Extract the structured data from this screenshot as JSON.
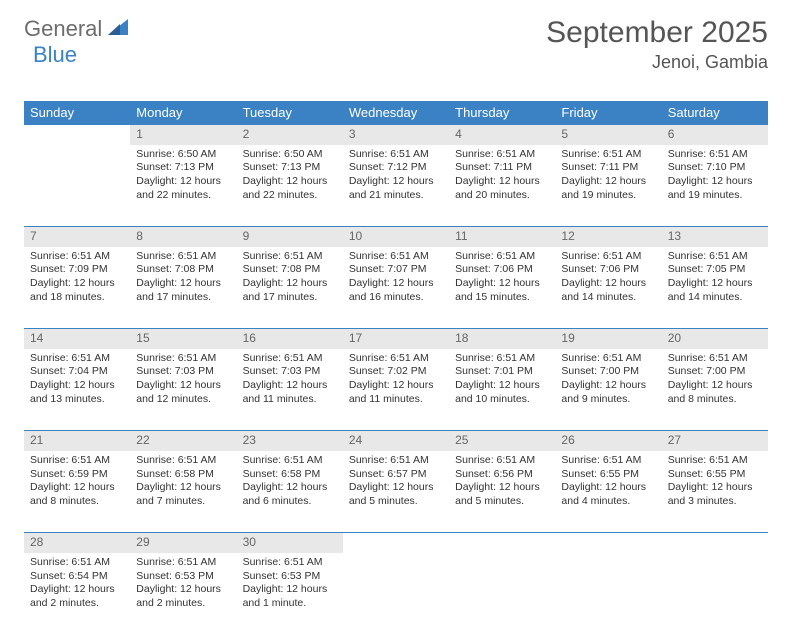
{
  "logo": {
    "text1": "General",
    "text2": "Blue"
  },
  "title": "September 2025",
  "location": "Jenoi, Gambia",
  "colors": {
    "header_bg": "#3b82c4",
    "header_text": "#ffffff",
    "daynum_bg": "#e8e8e8",
    "daynum_text": "#666666",
    "border": "#3b82c4",
    "body_text": "#333333",
    "logo_gray": "#6d6d6d",
    "logo_blue": "#3b82c4"
  },
  "weekdays": [
    "Sunday",
    "Monday",
    "Tuesday",
    "Wednesday",
    "Thursday",
    "Friday",
    "Saturday"
  ],
  "weeks": [
    [
      null,
      {
        "n": "1",
        "sr": "Sunrise: 6:50 AM",
        "ss": "Sunset: 7:13 PM",
        "dl": "Daylight: 12 hours and 22 minutes."
      },
      {
        "n": "2",
        "sr": "Sunrise: 6:50 AM",
        "ss": "Sunset: 7:13 PM",
        "dl": "Daylight: 12 hours and 22 minutes."
      },
      {
        "n": "3",
        "sr": "Sunrise: 6:51 AM",
        "ss": "Sunset: 7:12 PM",
        "dl": "Daylight: 12 hours and 21 minutes."
      },
      {
        "n": "4",
        "sr": "Sunrise: 6:51 AM",
        "ss": "Sunset: 7:11 PM",
        "dl": "Daylight: 12 hours and 20 minutes."
      },
      {
        "n": "5",
        "sr": "Sunrise: 6:51 AM",
        "ss": "Sunset: 7:11 PM",
        "dl": "Daylight: 12 hours and 19 minutes."
      },
      {
        "n": "6",
        "sr": "Sunrise: 6:51 AM",
        "ss": "Sunset: 7:10 PM",
        "dl": "Daylight: 12 hours and 19 minutes."
      }
    ],
    [
      {
        "n": "7",
        "sr": "Sunrise: 6:51 AM",
        "ss": "Sunset: 7:09 PM",
        "dl": "Daylight: 12 hours and 18 minutes."
      },
      {
        "n": "8",
        "sr": "Sunrise: 6:51 AM",
        "ss": "Sunset: 7:08 PM",
        "dl": "Daylight: 12 hours and 17 minutes."
      },
      {
        "n": "9",
        "sr": "Sunrise: 6:51 AM",
        "ss": "Sunset: 7:08 PM",
        "dl": "Daylight: 12 hours and 17 minutes."
      },
      {
        "n": "10",
        "sr": "Sunrise: 6:51 AM",
        "ss": "Sunset: 7:07 PM",
        "dl": "Daylight: 12 hours and 16 minutes."
      },
      {
        "n": "11",
        "sr": "Sunrise: 6:51 AM",
        "ss": "Sunset: 7:06 PM",
        "dl": "Daylight: 12 hours and 15 minutes."
      },
      {
        "n": "12",
        "sr": "Sunrise: 6:51 AM",
        "ss": "Sunset: 7:06 PM",
        "dl": "Daylight: 12 hours and 14 minutes."
      },
      {
        "n": "13",
        "sr": "Sunrise: 6:51 AM",
        "ss": "Sunset: 7:05 PM",
        "dl": "Daylight: 12 hours and 14 minutes."
      }
    ],
    [
      {
        "n": "14",
        "sr": "Sunrise: 6:51 AM",
        "ss": "Sunset: 7:04 PM",
        "dl": "Daylight: 12 hours and 13 minutes."
      },
      {
        "n": "15",
        "sr": "Sunrise: 6:51 AM",
        "ss": "Sunset: 7:03 PM",
        "dl": "Daylight: 12 hours and 12 minutes."
      },
      {
        "n": "16",
        "sr": "Sunrise: 6:51 AM",
        "ss": "Sunset: 7:03 PM",
        "dl": "Daylight: 12 hours and 11 minutes."
      },
      {
        "n": "17",
        "sr": "Sunrise: 6:51 AM",
        "ss": "Sunset: 7:02 PM",
        "dl": "Daylight: 12 hours and 11 minutes."
      },
      {
        "n": "18",
        "sr": "Sunrise: 6:51 AM",
        "ss": "Sunset: 7:01 PM",
        "dl": "Daylight: 12 hours and 10 minutes."
      },
      {
        "n": "19",
        "sr": "Sunrise: 6:51 AM",
        "ss": "Sunset: 7:00 PM",
        "dl": "Daylight: 12 hours and 9 minutes."
      },
      {
        "n": "20",
        "sr": "Sunrise: 6:51 AM",
        "ss": "Sunset: 7:00 PM",
        "dl": "Daylight: 12 hours and 8 minutes."
      }
    ],
    [
      {
        "n": "21",
        "sr": "Sunrise: 6:51 AM",
        "ss": "Sunset: 6:59 PM",
        "dl": "Daylight: 12 hours and 8 minutes."
      },
      {
        "n": "22",
        "sr": "Sunrise: 6:51 AM",
        "ss": "Sunset: 6:58 PM",
        "dl": "Daylight: 12 hours and 7 minutes."
      },
      {
        "n": "23",
        "sr": "Sunrise: 6:51 AM",
        "ss": "Sunset: 6:58 PM",
        "dl": "Daylight: 12 hours and 6 minutes."
      },
      {
        "n": "24",
        "sr": "Sunrise: 6:51 AM",
        "ss": "Sunset: 6:57 PM",
        "dl": "Daylight: 12 hours and 5 minutes."
      },
      {
        "n": "25",
        "sr": "Sunrise: 6:51 AM",
        "ss": "Sunset: 6:56 PM",
        "dl": "Daylight: 12 hours and 5 minutes."
      },
      {
        "n": "26",
        "sr": "Sunrise: 6:51 AM",
        "ss": "Sunset: 6:55 PM",
        "dl": "Daylight: 12 hours and 4 minutes."
      },
      {
        "n": "27",
        "sr": "Sunrise: 6:51 AM",
        "ss": "Sunset: 6:55 PM",
        "dl": "Daylight: 12 hours and 3 minutes."
      }
    ],
    [
      {
        "n": "28",
        "sr": "Sunrise: 6:51 AM",
        "ss": "Sunset: 6:54 PM",
        "dl": "Daylight: 12 hours and 2 minutes."
      },
      {
        "n": "29",
        "sr": "Sunrise: 6:51 AM",
        "ss": "Sunset: 6:53 PM",
        "dl": "Daylight: 12 hours and 2 minutes."
      },
      {
        "n": "30",
        "sr": "Sunrise: 6:51 AM",
        "ss": "Sunset: 6:53 PM",
        "dl": "Daylight: 12 hours and 1 minute."
      },
      null,
      null,
      null,
      null
    ]
  ]
}
